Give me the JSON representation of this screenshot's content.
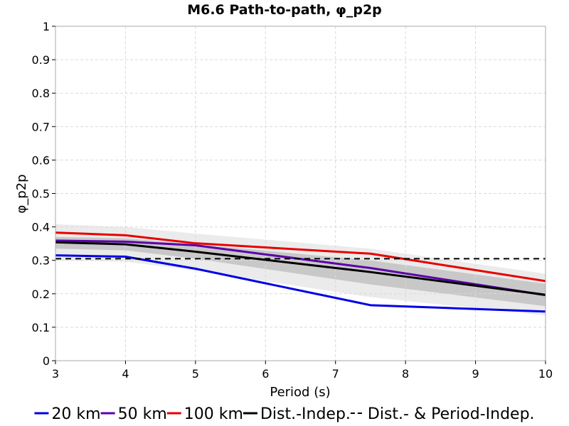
{
  "chart_data": {
    "type": "line",
    "title": "M6.6 Path-to-path, φ_p2p",
    "xlabel": "Period (s)",
    "ylabel": "φ_p2p",
    "xlim": [
      3,
      10
    ],
    "ylim": [
      0,
      1
    ],
    "xticks": [
      "3",
      "4",
      "5",
      "6",
      "7",
      "8",
      "9",
      "10"
    ],
    "yticks": [
      "0",
      "0.1",
      "0.2",
      "0.3",
      "0.4",
      "0.5",
      "0.6",
      "0.7",
      "0.8",
      "0.9",
      "1"
    ],
    "grid": true,
    "legend_position": "bottom",
    "x": [
      3,
      4,
      5,
      7.5,
      10
    ],
    "series": [
      {
        "name": "20 km",
        "color": "#0000e6",
        "style": "solid",
        "values": [
          0.315,
          0.311,
          0.275,
          0.166,
          0.147
        ]
      },
      {
        "name": "50 km",
        "color": "#5b00a8",
        "style": "solid",
        "values": [
          0.359,
          0.356,
          0.345,
          0.277,
          0.196
        ]
      },
      {
        "name": "100 km",
        "color": "#e60000",
        "style": "solid",
        "values": [
          0.383,
          0.375,
          0.351,
          0.32,
          0.238
        ]
      },
      {
        "name": "Dist.-Indep.",
        "color": "#000000",
        "style": "solid",
        "values": [
          0.354,
          0.348,
          0.326,
          0.265,
          0.197
        ]
      },
      {
        "name": "Dist.- & Period-Indep.",
        "color": "#000000",
        "style": "dashed",
        "values": [
          0.305,
          0.305,
          0.305,
          0.305,
          0.305
        ]
      }
    ],
    "bands": [
      {
        "color": "#ebebeb",
        "lower": [
          0.3,
          0.296,
          0.27,
          0.19,
          0.135
        ],
        "upper": [
          0.408,
          0.4,
          0.38,
          0.335,
          0.26
        ]
      },
      {
        "color": "#c8c8c8",
        "lower": [
          0.335,
          0.33,
          0.305,
          0.228,
          0.163
        ],
        "upper": [
          0.37,
          0.366,
          0.348,
          0.3,
          0.23
        ]
      }
    ]
  }
}
